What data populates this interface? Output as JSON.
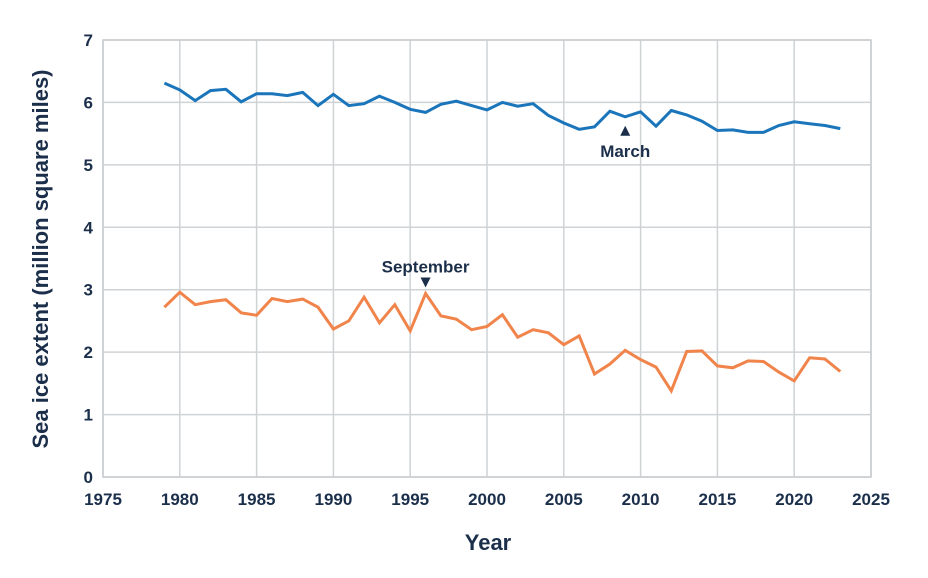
{
  "chart_data": {
    "type": "line",
    "title": "",
    "xlabel": "Year",
    "ylabel": "Sea ice extent (million square miles)",
    "xlim": [
      1975,
      2025
    ],
    "ylim": [
      0,
      7
    ],
    "xticks": [
      1975,
      1980,
      1985,
      1990,
      1995,
      2000,
      2005,
      2010,
      2015,
      2020,
      2025
    ],
    "yticks": [
      0,
      1,
      2,
      3,
      4,
      5,
      6,
      7
    ],
    "grid": true,
    "x": [
      1979,
      1980,
      1981,
      1982,
      1983,
      1984,
      1985,
      1986,
      1987,
      1988,
      1989,
      1990,
      1991,
      1992,
      1993,
      1994,
      1995,
      1996,
      1997,
      1998,
      1999,
      2000,
      2001,
      2002,
      2003,
      2004,
      2005,
      2006,
      2007,
      2008,
      2009,
      2010,
      2011,
      2012,
      2013,
      2014,
      2015,
      2016,
      2017,
      2018,
      2019,
      2020,
      2021,
      2022,
      2023
    ],
    "series": [
      {
        "name": "March",
        "color": "#1a75bb",
        "values": [
          6.31,
          6.2,
          6.03,
          6.19,
          6.21,
          6.01,
          6.14,
          6.14,
          6.11,
          6.16,
          5.95,
          6.13,
          5.95,
          5.98,
          6.1,
          6.0,
          5.89,
          5.84,
          5.97,
          6.02,
          5.95,
          5.88,
          6.0,
          5.94,
          5.98,
          5.79,
          5.67,
          5.57,
          5.61,
          5.86,
          5.77,
          5.85,
          5.62,
          5.87,
          5.8,
          5.7,
          5.55,
          5.56,
          5.52,
          5.52,
          5.63,
          5.69,
          5.66,
          5.63,
          5.58
        ]
      },
      {
        "name": "September",
        "color": "#f0844a",
        "values": [
          2.72,
          2.96,
          2.76,
          2.81,
          2.84,
          2.63,
          2.59,
          2.86,
          2.81,
          2.85,
          2.72,
          2.37,
          2.5,
          2.88,
          2.47,
          2.76,
          2.34,
          2.94,
          2.58,
          2.53,
          2.36,
          2.41,
          2.6,
          2.24,
          2.36,
          2.31,
          2.12,
          2.26,
          1.65,
          1.81,
          2.03,
          1.88,
          1.76,
          1.38,
          2.01,
          2.02,
          1.78,
          1.75,
          1.86,
          1.85,
          1.68,
          1.54,
          1.91,
          1.89,
          1.69
        ]
      }
    ],
    "annotations": [
      {
        "text": "March",
        "x": 2009,
        "y": 5.77,
        "position": "below",
        "color": "#1b2f4b"
      },
      {
        "text": "September",
        "x": 1996,
        "y": 2.94,
        "position": "above",
        "color": "#1b2f4b"
      }
    ]
  },
  "colors": {
    "text": "#1b2f4b",
    "grid": "#cfd3d6",
    "frame": "#c8ccd0"
  }
}
